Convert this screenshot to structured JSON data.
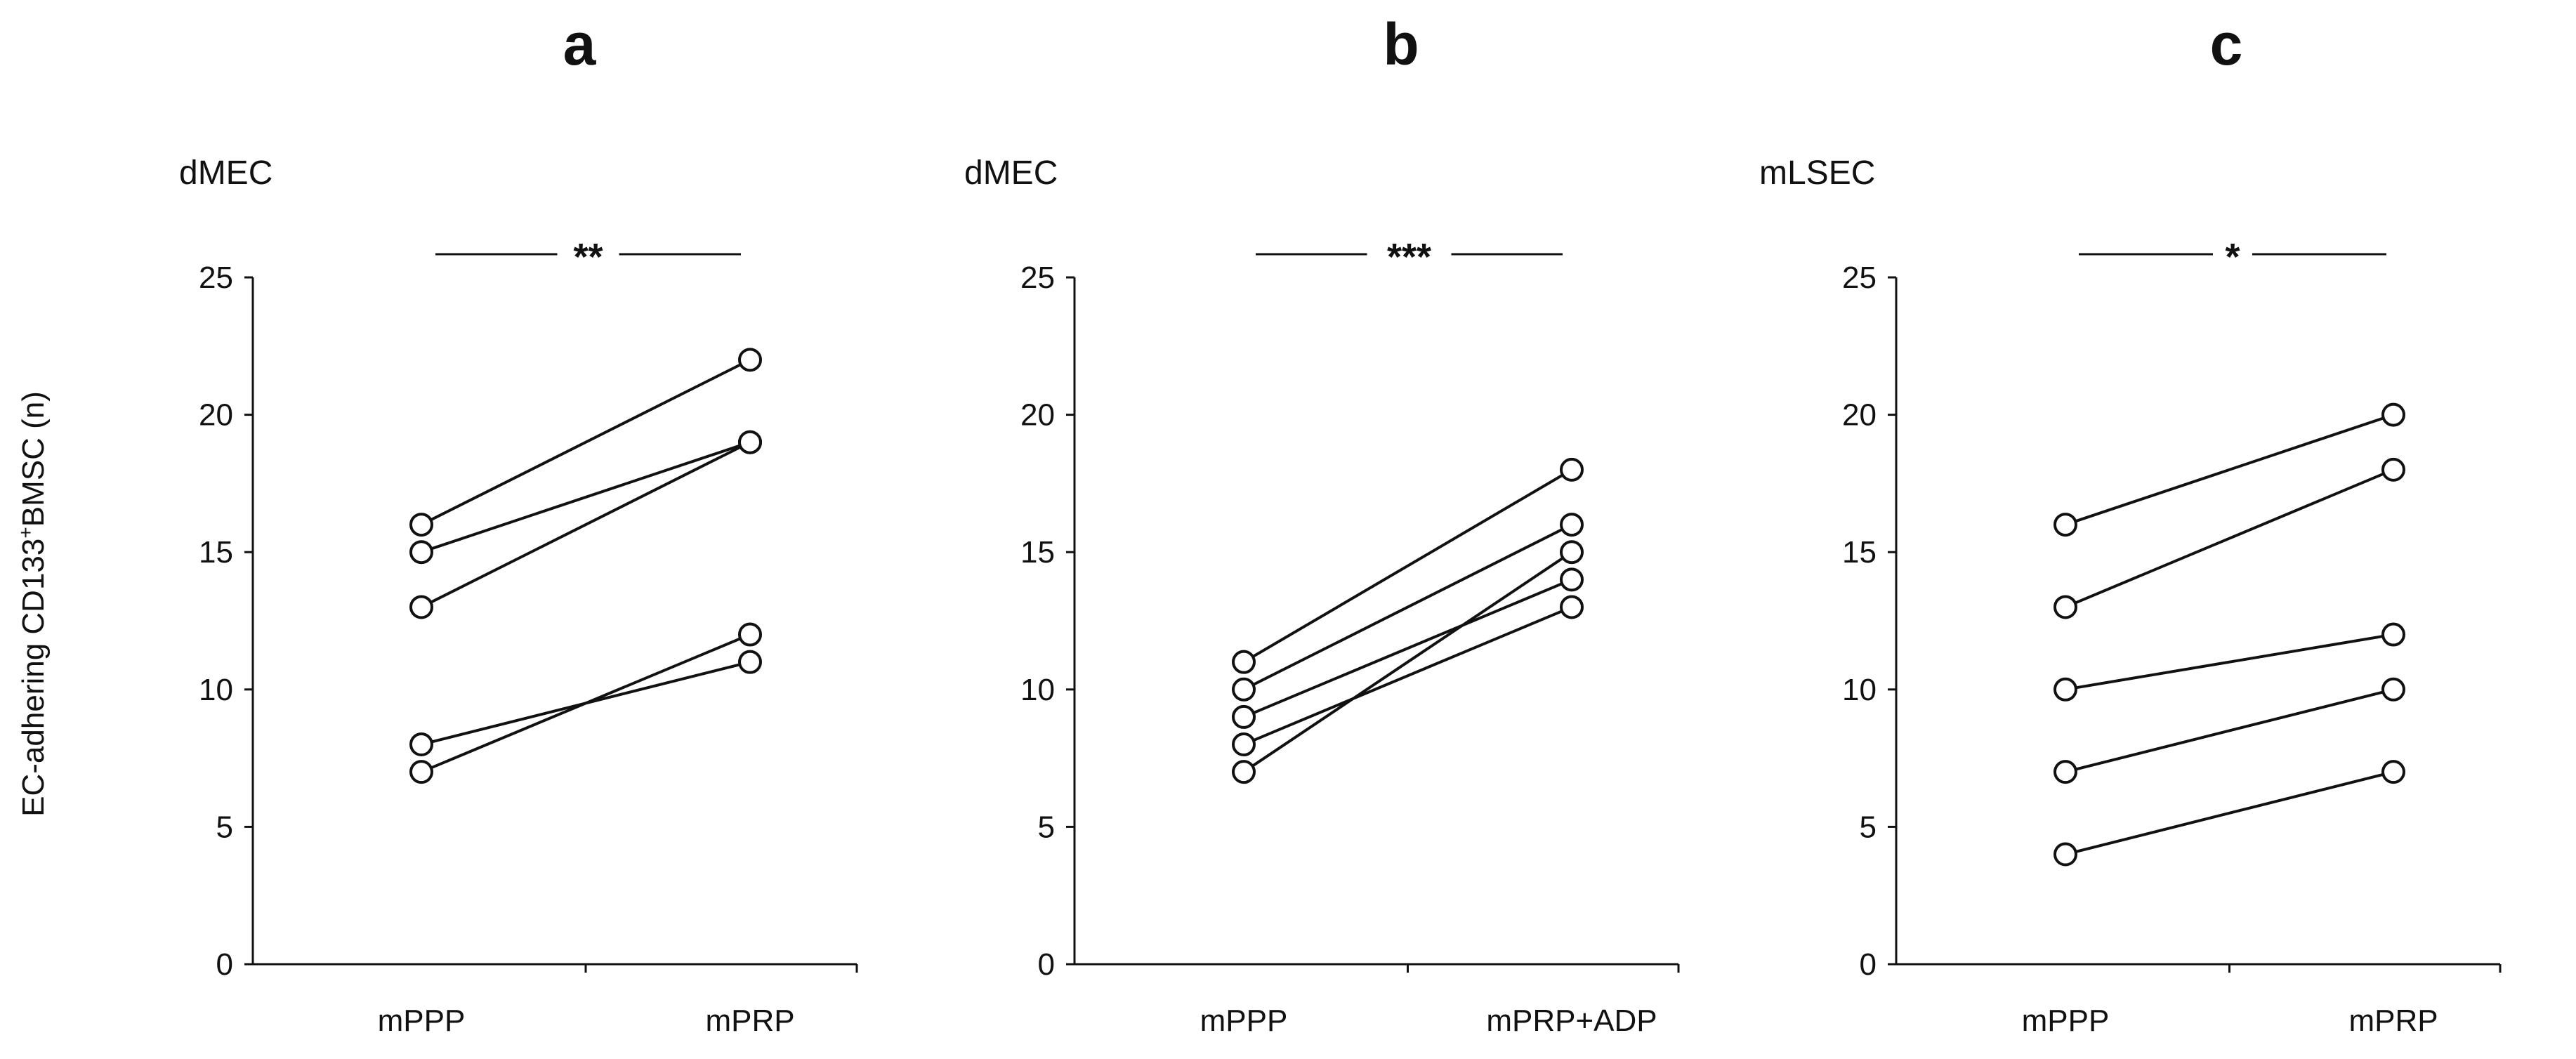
{
  "figure": {
    "ylabel_prefix": "EC-adhering CD133",
    "ylabel_sup": "+",
    "ylabel_suffix": "BMSC (n)"
  },
  "colors": {
    "line": "#111111",
    "marker_fill": "#ffffff",
    "text": "#111111"
  },
  "chart_data": [
    {
      "type": "line",
      "panel_label": "a",
      "subtitle": "dMEC",
      "significance": "**",
      "categories": [
        "mPPP",
        "mPRP"
      ],
      "ylim": [
        0,
        25
      ],
      "yticks": [
        0,
        5,
        10,
        15,
        20,
        25
      ],
      "series": [
        {
          "values": [
            16,
            22
          ]
        },
        {
          "values": [
            15,
            19
          ]
        },
        {
          "values": [
            13,
            19
          ]
        },
        {
          "values": [
            8,
            11
          ]
        },
        {
          "values": [
            7,
            12
          ]
        }
      ]
    },
    {
      "type": "line",
      "panel_label": "b",
      "subtitle": "dMEC",
      "significance": "***",
      "categories": [
        "mPPP",
        "mPRP+ADP"
      ],
      "ylim": [
        0,
        25
      ],
      "yticks": [
        0,
        5,
        10,
        15,
        20,
        25
      ],
      "series": [
        {
          "values": [
            11,
            18
          ]
        },
        {
          "values": [
            10,
            16
          ]
        },
        {
          "values": [
            9,
            14
          ]
        },
        {
          "values": [
            8,
            13
          ]
        },
        {
          "values": [
            7,
            15
          ]
        }
      ]
    },
    {
      "type": "line",
      "panel_label": "c",
      "subtitle": "mLSEC",
      "significance": "*",
      "categories": [
        "mPPP",
        "mPRP"
      ],
      "ylim": [
        0,
        25
      ],
      "yticks": [
        0,
        5,
        10,
        15,
        20,
        25
      ],
      "series": [
        {
          "values": [
            16,
            20
          ]
        },
        {
          "values": [
            13,
            18
          ]
        },
        {
          "values": [
            10,
            12
          ]
        },
        {
          "values": [
            7,
            10
          ]
        },
        {
          "values": [
            4,
            7
          ]
        }
      ]
    }
  ]
}
